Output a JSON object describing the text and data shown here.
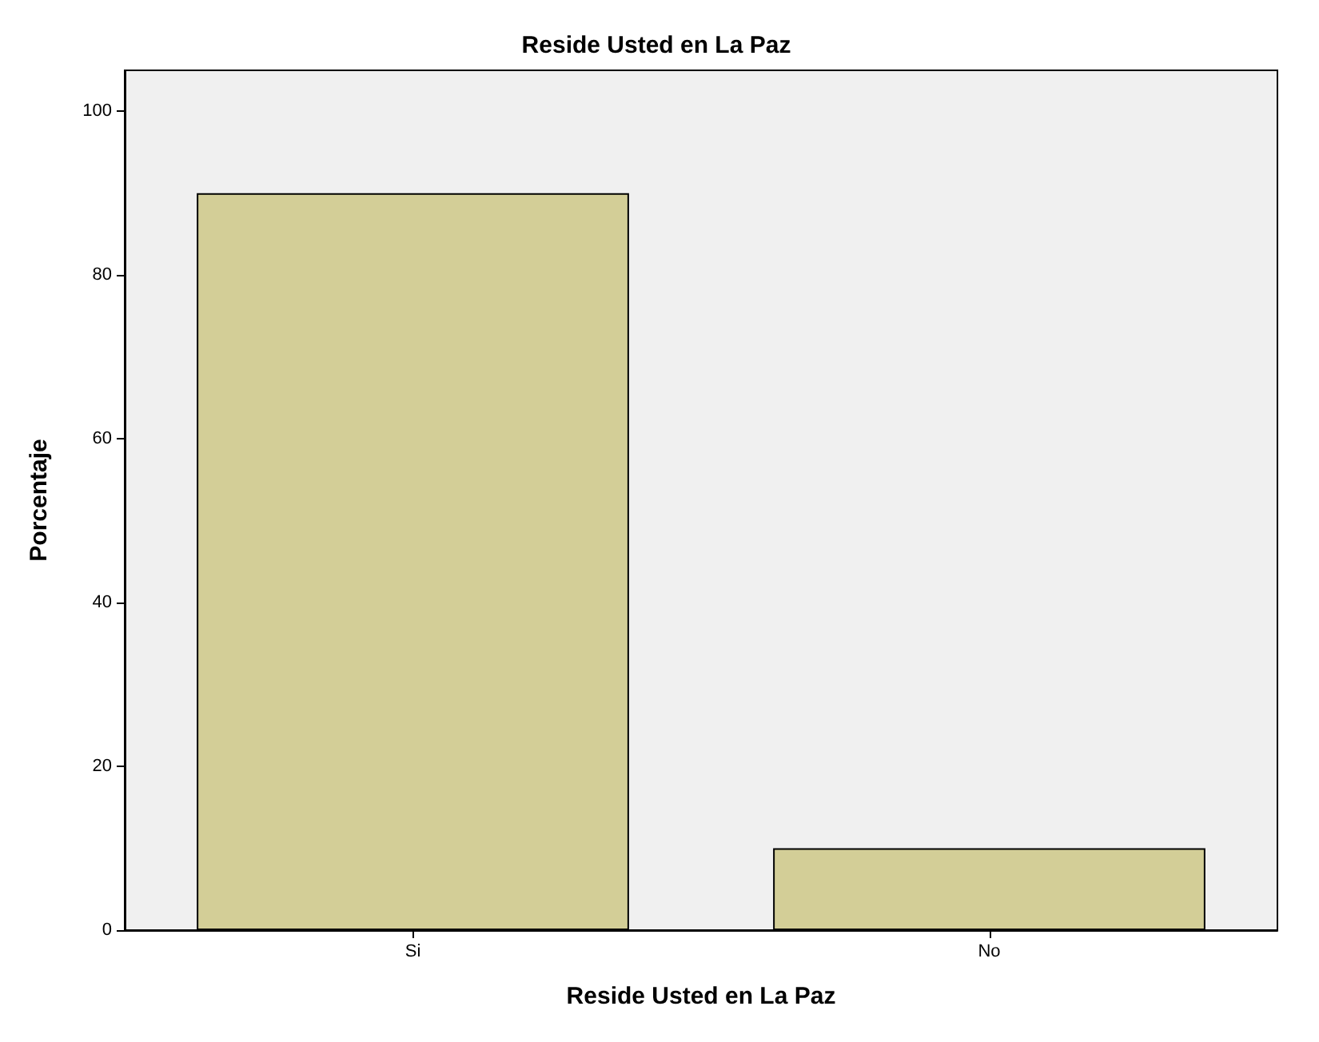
{
  "chart_data": {
    "type": "bar",
    "title": "Reside Usted en La Paz",
    "xlabel": "Reside Usted en La Paz",
    "ylabel": "Porcentaje",
    "categories": [
      "Si",
      "No"
    ],
    "values": [
      90,
      10
    ],
    "color": "#d3ce97",
    "ylim": [
      0,
      105
    ],
    "yticks": [
      0,
      20,
      40,
      60,
      80,
      100
    ],
    "grid": false
  }
}
